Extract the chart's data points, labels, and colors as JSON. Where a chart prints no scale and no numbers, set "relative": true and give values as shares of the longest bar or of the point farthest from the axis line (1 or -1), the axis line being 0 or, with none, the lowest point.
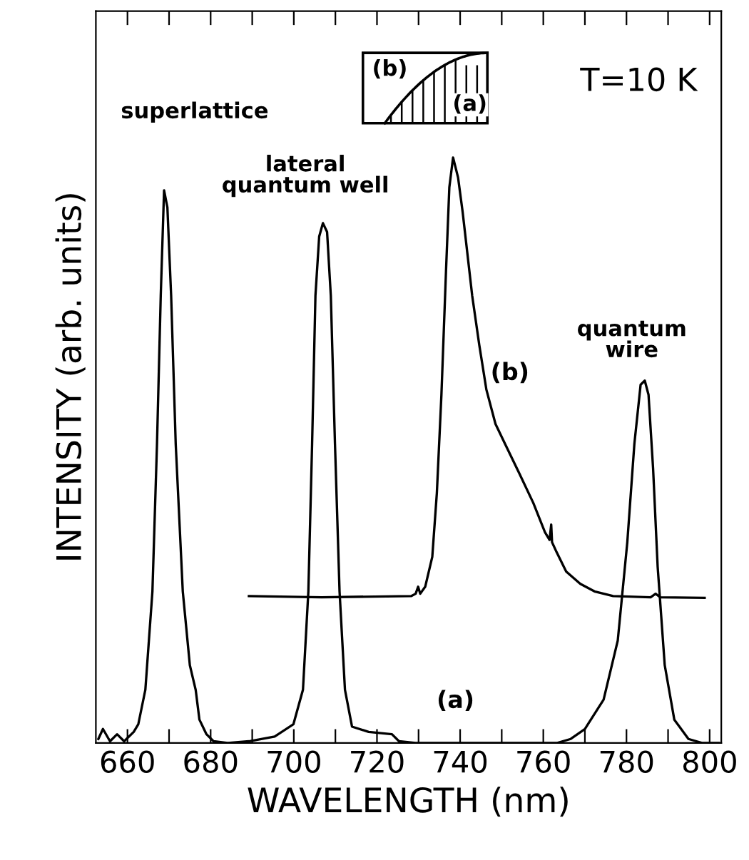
{
  "chart_data": {
    "type": "line",
    "relative": true,
    "xlabel": "WAVELENGTH (nm)",
    "ylabel": "INTENSITY (arb. units)",
    "xlim": [
      652.4,
      802.8
    ],
    "xticks": [
      660,
      {
        "value": 670,
        "label": null
      },
      680,
      {
        "value": 690,
        "label": null
      },
      700,
      {
        "value": 710,
        "label": null
      },
      720,
      {
        "value": 730,
        "label": null
      },
      740,
      {
        "value": 750,
        "label": null
      },
      760,
      {
        "value": 770,
        "label": null
      },
      780,
      {
        "value": 790,
        "label": null
      },
      800
    ],
    "tick_labels": "x",
    "grid": false,
    "marker": "none",
    "line_style": "solid",
    "annotations": [
      "superlattice",
      "lateral\nquantum well",
      "quantum\nwire",
      "(b)",
      "(a)",
      "T=10 K",
      "(b)",
      "(a)"
    ],
    "series": [
      {
        "color": "#000000",
        "x": [
          653.0,
          654.1,
          655.8,
          657.5,
          659.2,
          661.5,
          662.6,
          664.3,
          666.0,
          667.1,
          668.0,
          668.8,
          669.6,
          670.5,
          671.6,
          673.3,
          675.0,
          676.4,
          677.3,
          679.0,
          680.7,
          684.1,
          689.2,
          695.4,
          699.9,
          702.2,
          703.5,
          704.4,
          705.2,
          706.1,
          707.0,
          708.0,
          708.9,
          709.9,
          711.0,
          712.3,
          714.0,
          718.0,
          723.6,
          725.3,
          729.3,
          763.2,
          766.6,
          770.0,
          774.5,
          777.9,
          780.2,
          781.9,
          783.4,
          784.4,
          785.3,
          786.4,
          787.5,
          789.2,
          791.5,
          794.9,
          798.3,
          802.2
        ],
        "values": [
          0.007,
          0.024,
          0.003,
          0.015,
          0.003,
          0.019,
          0.032,
          0.091,
          0.259,
          0.511,
          0.764,
          0.944,
          0.915,
          0.764,
          0.511,
          0.259,
          0.133,
          0.091,
          0.04,
          0.015,
          0.003,
          0,
          0.003,
          0.011,
          0.032,
          0.091,
          0.259,
          0.511,
          0.764,
          0.865,
          0.888,
          0.873,
          0.764,
          0.511,
          0.259,
          0.091,
          0.028,
          0.019,
          0.015,
          0.003,
          0,
          0,
          0.007,
          0.024,
          0.074,
          0.175,
          0.343,
          0.511,
          0.612,
          0.619,
          0.595,
          0.469,
          0.301,
          0.133,
          0.04,
          0.007,
          0,
          0
        ]
      },
      {
        "color": "#000000",
        "x": [
          689.2,
          706.7,
          728.2,
          729.3,
          729.9,
          730.4,
          731.6,
          733.3,
          734.4,
          735.5,
          736.6,
          737.4,
          738.3,
          739.5,
          740.6,
          742.9,
          744.6,
          746.3,
          748.5,
          750.8,
          754.2,
          757.6,
          760.4,
          761.5,
          761.9,
          762.1,
          763.2,
          765.5,
          768.9,
          772.3,
          776.8,
          785.8,
          787.0,
          788.1,
          798.8
        ],
        "values": [
          0.251,
          0.249,
          0.251,
          0.255,
          0.267,
          0.255,
          0.267,
          0.318,
          0.427,
          0.595,
          0.806,
          0.949,
          1.0,
          0.966,
          0.907,
          0.764,
          0.68,
          0.604,
          0.545,
          0.511,
          0.461,
          0.41,
          0.36,
          0.347,
          0.373,
          0.343,
          0.326,
          0.293,
          0.272,
          0.259,
          0.251,
          0.249,
          0.255,
          0.249,
          0.248
        ]
      }
    ]
  }
}
